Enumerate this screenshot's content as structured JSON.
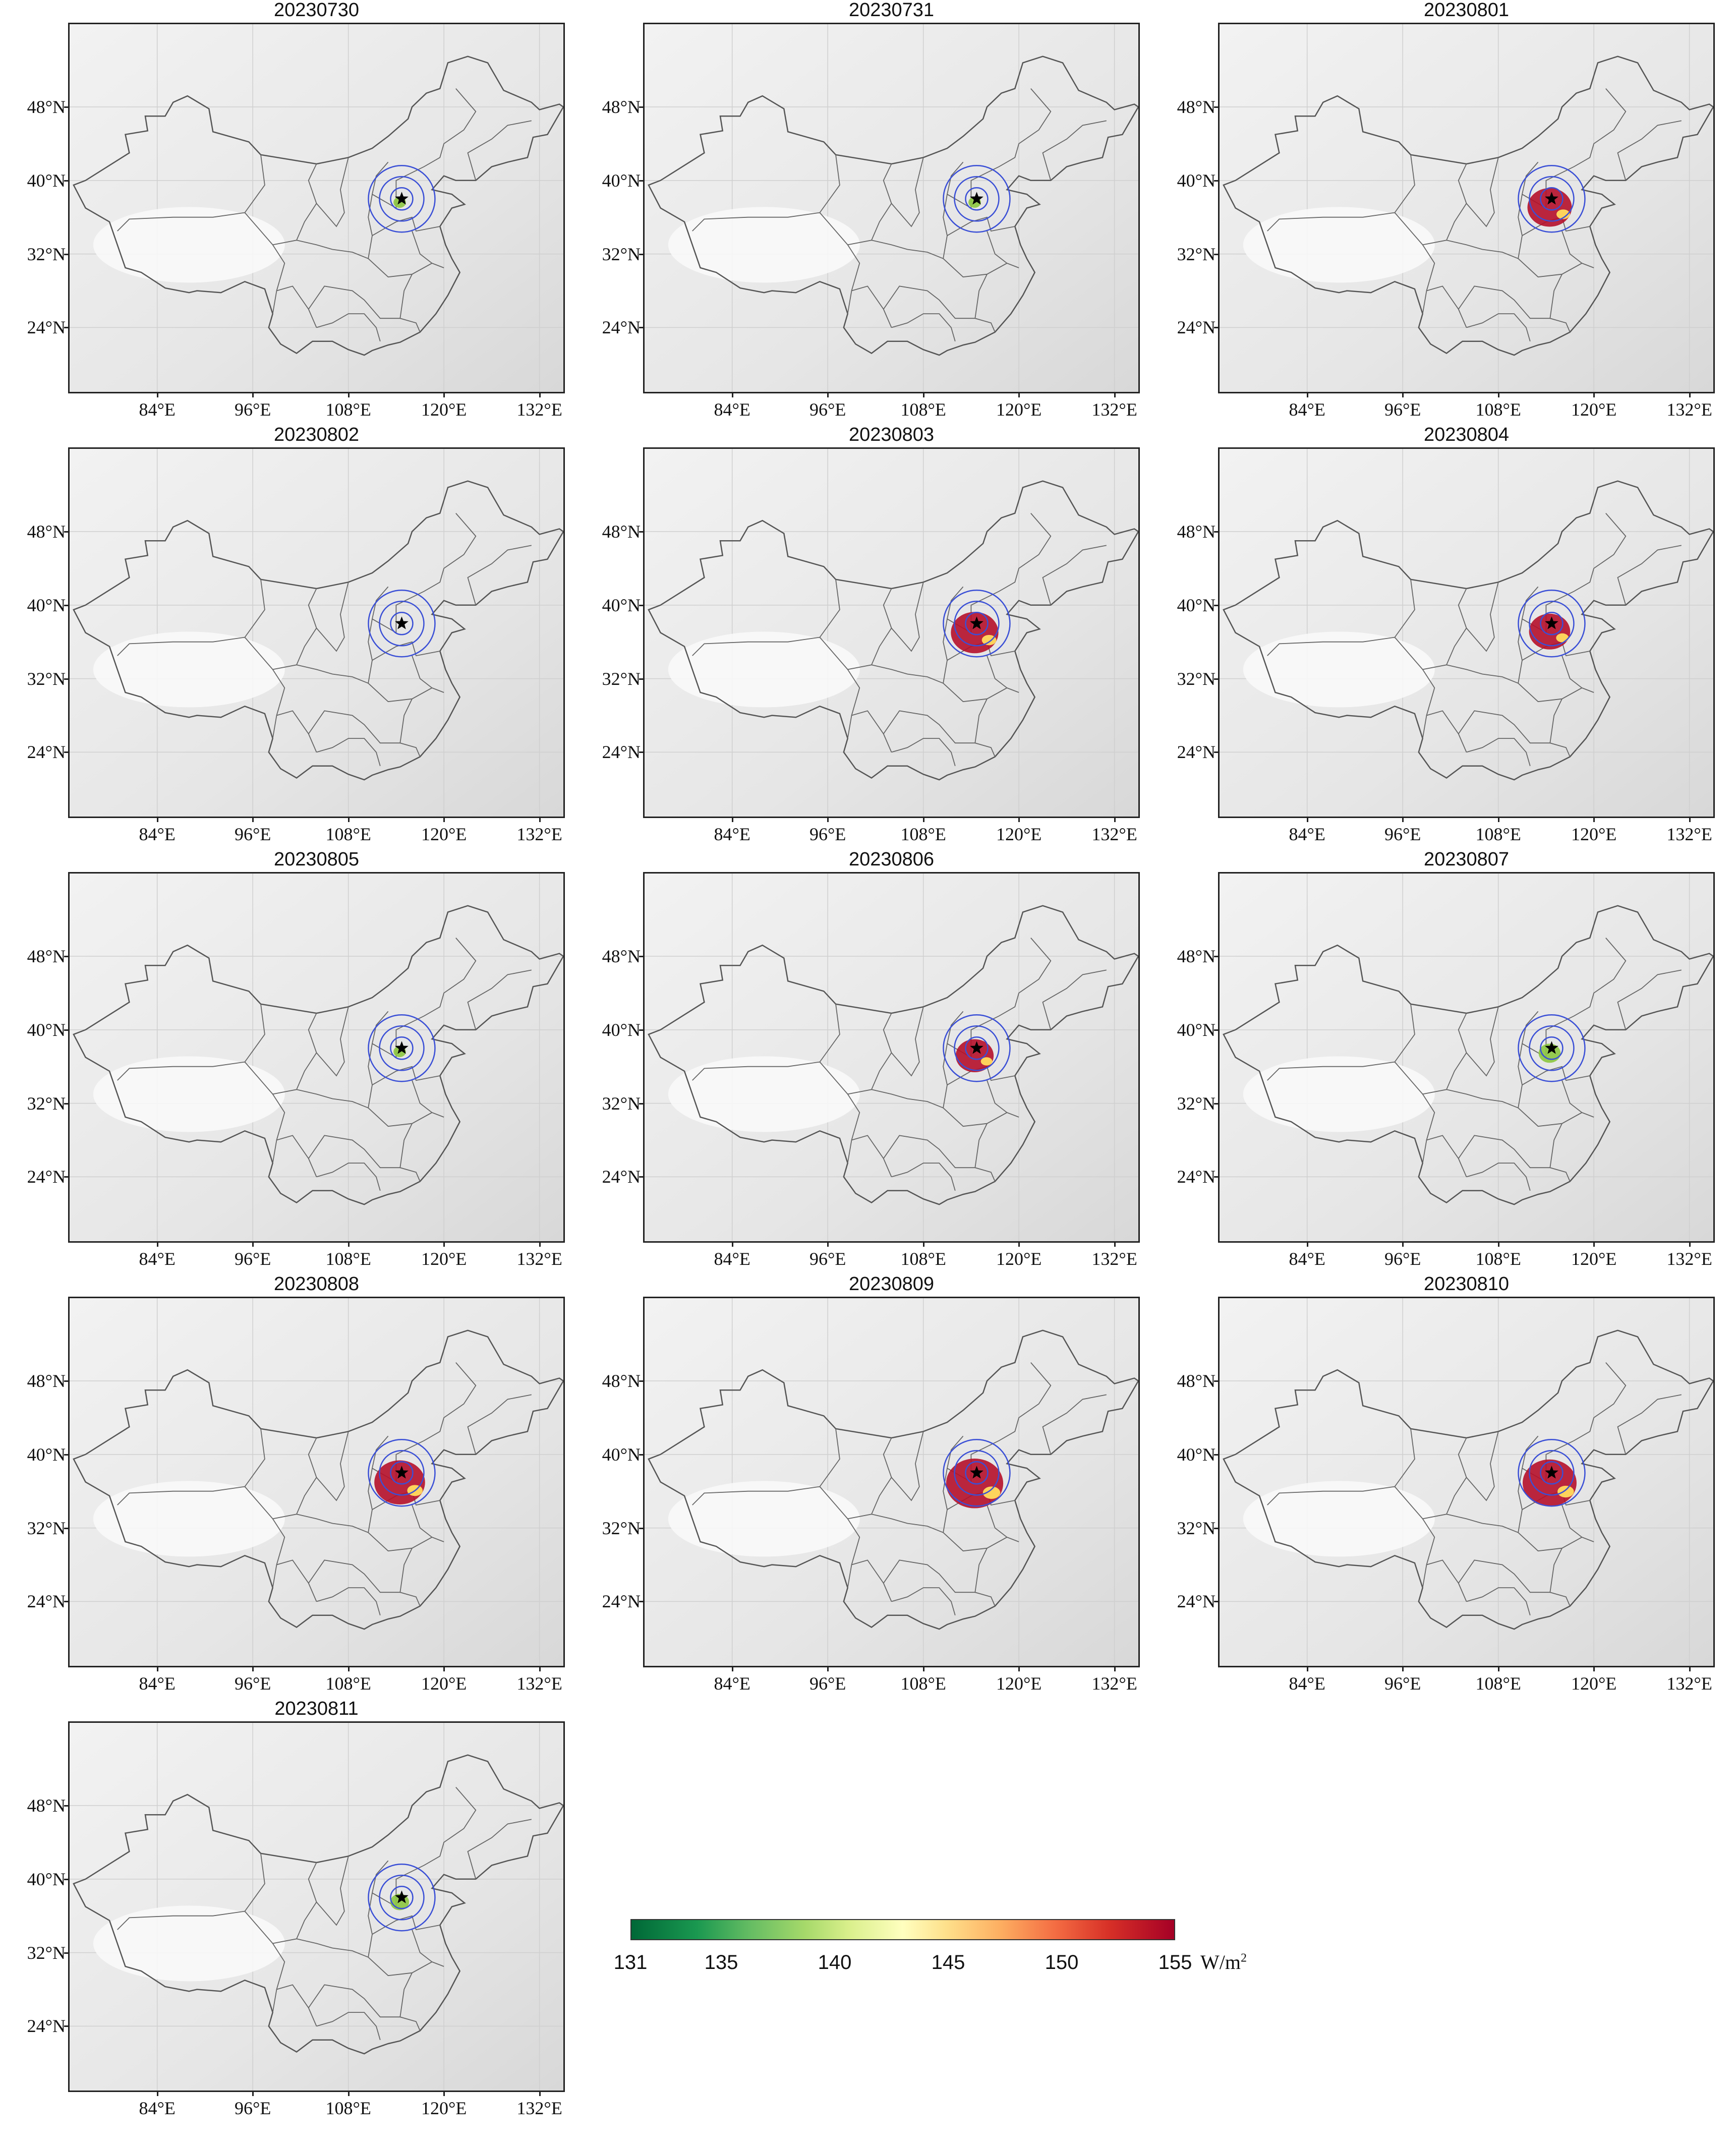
{
  "figure": {
    "lat_ticks": [
      "48°N",
      "40°N",
      "32°N",
      "24°N"
    ],
    "lat_values": [
      48,
      40,
      32,
      24
    ],
    "lon_ticks": [
      "84°E",
      "96°E",
      "108°E",
      "120°E",
      "132°E"
    ],
    "lon_values": [
      84,
      96,
      108,
      120,
      132
    ],
    "extent": {
      "lon": [
        73,
        135
      ],
      "lat": [
        17,
        57
      ]
    },
    "station": {
      "lon": 114.7,
      "lat": 38.0,
      "marker": "star-icon"
    },
    "ring_color": "#3a4fd6",
    "ring_count": 3,
    "panels": [
      {
        "title": "20230730",
        "level": 0.05
      },
      {
        "title": "20230731",
        "level": 0.05
      },
      {
        "title": "20230801",
        "level": 0.55
      },
      {
        "title": "20230802",
        "level": 0.0
      },
      {
        "title": "20230803",
        "level": 0.6
      },
      {
        "title": "20230804",
        "level": 0.5
      },
      {
        "title": "20230805",
        "level": 0.05
      },
      {
        "title": "20230806",
        "level": 0.45
      },
      {
        "title": "20230807",
        "level": 0.2
      },
      {
        "title": "20230808",
        "level": 0.65
      },
      {
        "title": "20230809",
        "level": 0.75
      },
      {
        "title": "20230810",
        "level": 0.7
      },
      {
        "title": "20230811",
        "level": 0.15
      }
    ]
  },
  "colorbar": {
    "ticks": [
      "131",
      "135",
      "140",
      "145",
      "150",
      "155"
    ],
    "tick_values": [
      131,
      135,
      140,
      145,
      150,
      155
    ],
    "range": [
      131,
      155
    ],
    "unit": "W/m",
    "unit_sup": "2",
    "colors": [
      "#006837",
      "#66bd63",
      "#d9ef8b",
      "#ffffbf",
      "#fdae61",
      "#d73027",
      "#a50026"
    ]
  }
}
